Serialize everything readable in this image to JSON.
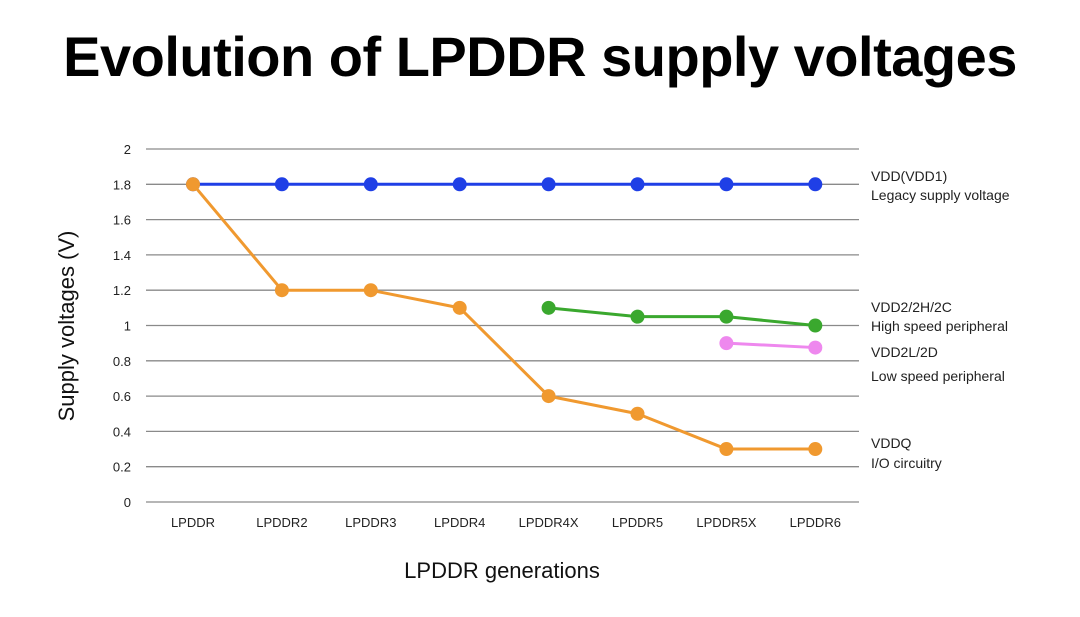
{
  "title": "Evolution of LPDDR supply voltages",
  "chart_data": {
    "type": "line",
    "title": "Evolution of LPDDR supply voltages",
    "xlabel": "LPDDR generations",
    "ylabel": "Supply voltages (V)",
    "ylim": [
      0,
      2
    ],
    "yticks": [
      0,
      0.2,
      0.4,
      0.6,
      0.8,
      1,
      1.2,
      1.4,
      1.6,
      1.8,
      2
    ],
    "ytick_labels": [
      "0",
      "0.2",
      "0.4",
      "0.6",
      "0.8",
      "1",
      "1.2",
      "1.4",
      "1.6",
      "1.8",
      "2"
    ],
    "grid": true,
    "legend_placement": "right (inline labels at line ends)",
    "categories": [
      "LPDDR",
      "LPDDR2",
      "LPDDR3",
      "LPDDR4",
      "LPDDR4X",
      "LPDDR5",
      "LPDDR5X",
      "LPDDR6"
    ],
    "series": [
      {
        "name": "VDD(VDD1)",
        "description": "Legacy supply voltage",
        "color": "#1f3fe6",
        "values": [
          1.8,
          1.8,
          1.8,
          1.8,
          1.8,
          1.8,
          1.8,
          1.8
        ]
      },
      {
        "name": "VDD2/2H/2C",
        "description": "High speed peripheral",
        "color": "#3aa82e",
        "values": [
          null,
          null,
          null,
          null,
          1.1,
          1.05,
          1.05,
          1.0
        ]
      },
      {
        "name": "VDD2L/2D",
        "description": "Low speed peripheral",
        "color": "#ee88ee",
        "values": [
          null,
          null,
          null,
          null,
          null,
          null,
          0.9,
          0.875
        ]
      },
      {
        "name": "VDDQ",
        "description": "I/O circuitry",
        "color": "#f0992f",
        "values": [
          1.8,
          1.2,
          1.2,
          1.1,
          0.6,
          0.5,
          0.3,
          0.3
        ]
      }
    ]
  }
}
